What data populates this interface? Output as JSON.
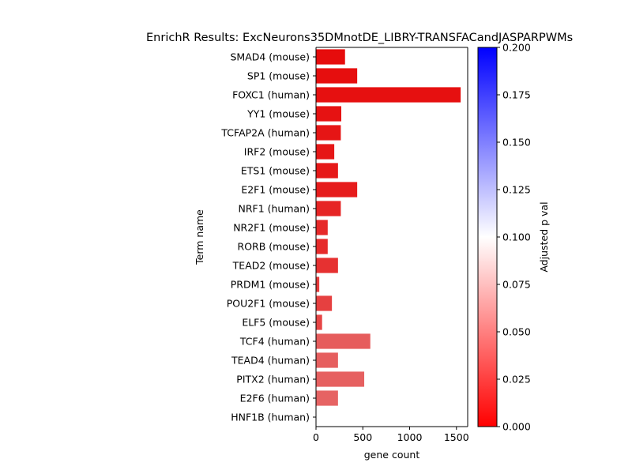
{
  "chart_data": {
    "type": "bar",
    "orientation": "horizontal",
    "title": "EnrichR Results: ExcNeurons35DMnotDE_LIBRY-TRANSFACandJASPARPWMs",
    "xlabel": "gene count",
    "ylabel": "Term name",
    "xlim": [
      0,
      1620
    ],
    "xticks": [
      0,
      500,
      1000,
      1500
    ],
    "grid": false,
    "categories": [
      "SMAD4 (mouse)",
      "SP1 (mouse)",
      "FOXC1 (human)",
      "YY1 (mouse)",
      "TCFAP2A (human)",
      "IRF2 (mouse)",
      "ETS1 (mouse)",
      "E2F1 (mouse)",
      "NRF1 (human)",
      "NR2F1 (mouse)",
      "RORB (mouse)",
      "TEAD2 (mouse)",
      "PRDM1 (mouse)",
      "POU2F1 (mouse)",
      "ELF5 (mouse)",
      "TCF4 (human)",
      "TEAD4 (human)",
      "PITX2 (human)",
      "E2F6 (human)",
      "HNF1B (human)"
    ],
    "values": [
      310,
      440,
      1545,
      270,
      265,
      195,
      235,
      440,
      265,
      125,
      125,
      235,
      35,
      170,
      65,
      580,
      235,
      515,
      235,
      2
    ],
    "adjusted_p": [
      0.005,
      0.006,
      0.007,
      0.008,
      0.009,
      0.01,
      0.011,
      0.012,
      0.016,
      0.018,
      0.019,
      0.021,
      0.025,
      0.028,
      0.03,
      0.04,
      0.041,
      0.042,
      0.043,
      0.045
    ],
    "colorbar": {
      "label": "Adjusted p val",
      "range": [
        0.0,
        0.2
      ],
      "ticks": [
        "0.000",
        "0.025",
        "0.050",
        "0.075",
        "0.100",
        "0.125",
        "0.150",
        "0.175",
        "0.200"
      ],
      "colors": {
        "low": "#ff0000",
        "mid": "#ffffff",
        "high": "#0000ff"
      }
    }
  }
}
